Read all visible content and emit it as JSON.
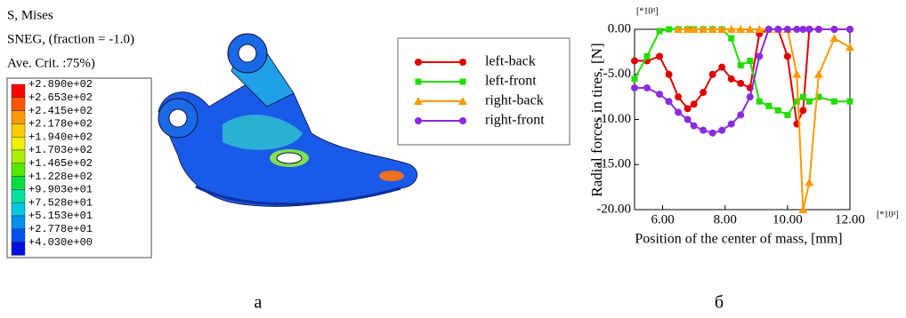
{
  "fe_result": {
    "header": [
      "S, Mises",
      "SNEG, (fraction = -1.0)",
      "Ave. Crit. :75%)"
    ],
    "contour_legend": {
      "labels": [
        "+2.890e+02",
        "+2.653e+02",
        "+2.415e+02",
        "+2.178e+02",
        "+1.940e+02",
        "+1.703e+02",
        "+1.465e+02",
        "+1.228e+02",
        "+9.903e+01",
        "+7.528e+01",
        "+5.153e+01",
        "+2.778e+01",
        "+4.030e+00"
      ],
      "colors": [
        "#ff0000",
        "#ff5500",
        "#ff9900",
        "#ffcc00",
        "#eef000",
        "#aaf000",
        "#55e800",
        "#00e040",
        "#00e0a0",
        "#00c8e0",
        "#0090f0",
        "#0050f0",
        "#0010e0"
      ]
    },
    "panel_label": "а"
  },
  "chart_data": {
    "type": "line",
    "panel_label": "б",
    "y_label": "Radial forces in tires, [N]",
    "x_label": "Position of the center of mass, [mm]",
    "y_multiplier": "[*10³]",
    "x_multiplier": "[*10³]",
    "xlim": [
      5.1,
      12.0
    ],
    "ylim": [
      -20,
      0
    ],
    "xticks": [
      {
        "value": 6,
        "label": "6.00"
      },
      {
        "value": 8,
        "label": "8.00"
      },
      {
        "value": 10,
        "label": "10.00"
      },
      {
        "value": 12,
        "label": "12.00"
      }
    ],
    "yticks": [
      {
        "value": 0,
        "label": "0.00"
      },
      {
        "value": -5,
        "label": "-5.00"
      },
      {
        "value": -10,
        "label": "-10.00"
      },
      {
        "value": -15,
        "label": "-15.00"
      },
      {
        "value": -20,
        "label": "-20.00"
      }
    ],
    "grid": false,
    "x": [
      5.1,
      5.5,
      5.9,
      6.2,
      6.5,
      6.8,
      7.0,
      7.3,
      7.6,
      7.9,
      8.2,
      8.5,
      8.8,
      9.1,
      9.4,
      9.7,
      10.0,
      10.3,
      10.5,
      10.7,
      11.0,
      11.5,
      12.0
    ],
    "series": [
      {
        "name": "left-back",
        "color": "#e00000",
        "marker": "circle",
        "values": [
          -3.5,
          -3.5,
          -3.0,
          -5,
          -7.5,
          -8.8,
          -8.3,
          -7,
          -5,
          -4.2,
          -5.5,
          -6,
          -6.5,
          -0.5,
          0,
          0,
          -3,
          -10.5,
          -9,
          0,
          0,
          0,
          0
        ]
      },
      {
        "name": "left-front",
        "color": "#22dd00",
        "marker": "square",
        "values": [
          -5.5,
          -3,
          -0.2,
          0,
          0,
          0,
          0,
          0,
          0,
          0,
          -1,
          -4,
          -3.5,
          -8,
          -8.5,
          -9,
          -9.5,
          -8,
          -7.5,
          -8,
          -7.5,
          -8,
          -8
        ]
      },
      {
        "name": "right-back",
        "color": "#ff9900",
        "marker": "triangle",
        "values": [
          null,
          null,
          null,
          null,
          0,
          0,
          0,
          0,
          0,
          0,
          0,
          0,
          0,
          0,
          0,
          0,
          0,
          -5,
          -20,
          -17,
          -5,
          -1,
          -2
        ]
      },
      {
        "name": "right-front",
        "color": "#8a2be2",
        "marker": "circle",
        "values": [
          -6.5,
          -6.5,
          -7.2,
          -8,
          -9.2,
          -10,
          -10.7,
          -11.2,
          -11.5,
          -11.2,
          -10.5,
          -9.5,
          -7.5,
          -3,
          0,
          0,
          0,
          0,
          0,
          0,
          0,
          0,
          0
        ]
      }
    ]
  }
}
